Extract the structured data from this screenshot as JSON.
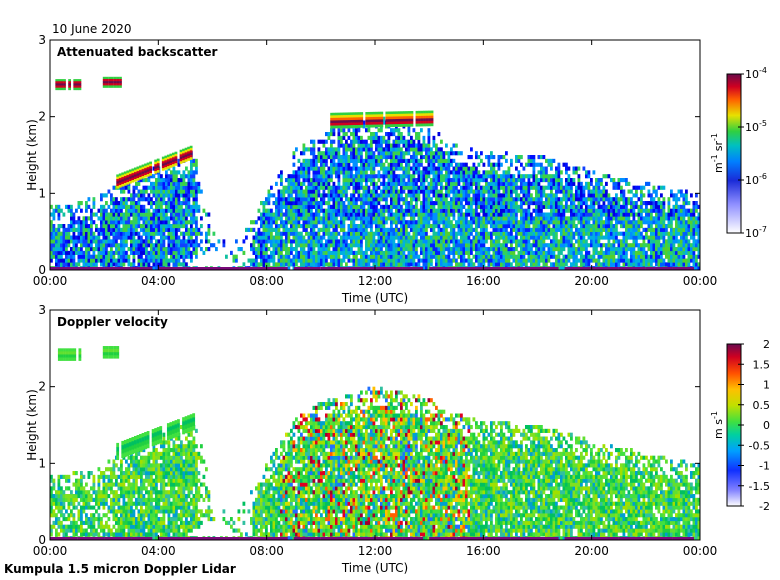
{
  "date_label": "10 June 2020",
  "footer": "Kumpula 1.5 micron Doppler Lidar",
  "colors": {
    "ground_band": "#7a0a7a",
    "background": "#ffffff"
  },
  "chart_data": [
    {
      "type": "heatmap",
      "title": "Attenuated backscatter",
      "xlabel": "Time (UTC)",
      "ylabel": "Height (km)",
      "xlim": [
        0,
        24
      ],
      "ylim": [
        0,
        3
      ],
      "xticks": [
        "00:00",
        "04:00",
        "08:00",
        "12:00",
        "16:00",
        "20:00",
        "00:00"
      ],
      "yticks": [
        "0",
        "1",
        "2",
        "3"
      ],
      "colorbar": {
        "scale": "log",
        "units_main": "m",
        "units_exp1": "-1",
        "units_mid": "sr",
        "units_exp2": "-1",
        "ticks": [
          {
            "value": 1e-07,
            "base": "10",
            "exp": "-7"
          },
          {
            "value": 1e-06,
            "base": "10",
            "exp": "-6"
          },
          {
            "value": 1e-05,
            "base": "10",
            "exp": "-5"
          },
          {
            "value": 0.0001,
            "base": "10",
            "exp": "-4"
          }
        ],
        "range": [
          1e-07,
          0.0001
        ]
      },
      "regions": [
        {
          "description_value": "boundary layer",
          "t_start": 0,
          "t_end": 24,
          "level": 1e-06
        },
        {
          "description_value": "cloud layer 00:00-03:00",
          "t_start": 0.1,
          "t_end": 2.6,
          "height_km": 2.4,
          "level": 0.0001
        },
        {
          "description_value": "rising cloud 02:30-05:20",
          "t_start": 2.4,
          "t_end": 5.3,
          "height_km_start": 1.15,
          "height_km_end": 1.55,
          "level": 8e-05
        },
        {
          "description_value": "cloud top 10:30-14:00",
          "t_start": 10.3,
          "t_end": 14.1,
          "height_km": 1.95,
          "level": 6e-05
        }
      ]
    },
    {
      "type": "heatmap",
      "title": "Doppler velocity",
      "xlabel": "Time (UTC)",
      "ylabel": "Height (km)",
      "xlim": [
        0,
        24
      ],
      "ylim": [
        0,
        3
      ],
      "xticks": [
        "00:00",
        "04:00",
        "08:00",
        "12:00",
        "16:00",
        "20:00",
        "00:00"
      ],
      "yticks": [
        "0",
        "1",
        "2",
        "3"
      ],
      "colorbar": {
        "scale": "linear",
        "units_main": "m s",
        "units_exp": "-1",
        "ticks": [
          "-2",
          "-1.5",
          "-1",
          "-0.5",
          "0",
          "0.5",
          "1",
          "1.5",
          "2"
        ],
        "range": [
          -2,
          2
        ]
      }
    }
  ]
}
